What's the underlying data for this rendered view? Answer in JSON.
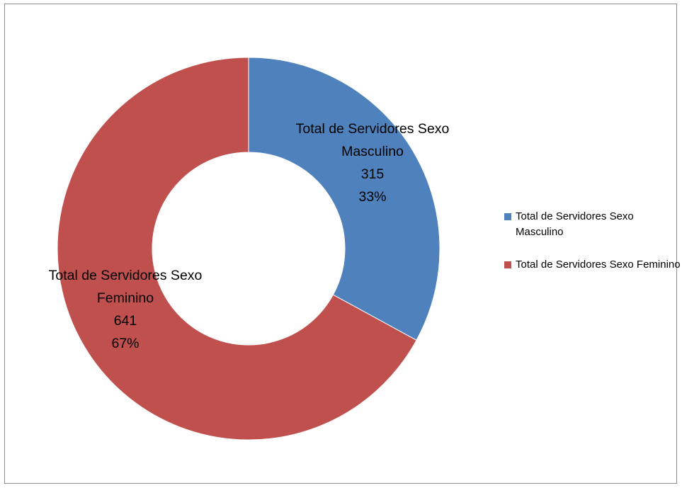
{
  "chart_data": {
    "type": "pie",
    "donut": true,
    "title": "",
    "categories": [
      "Total de Servidores Sexo Masculino",
      "Total de Servidores Sexo Feminino"
    ],
    "values": [
      315,
      641
    ],
    "percent_labels": [
      "33%",
      "67%"
    ],
    "value_labels": [
      "315",
      "641"
    ],
    "colors": [
      "#4f81bd",
      "#c0504d"
    ],
    "legend": "right"
  }
}
